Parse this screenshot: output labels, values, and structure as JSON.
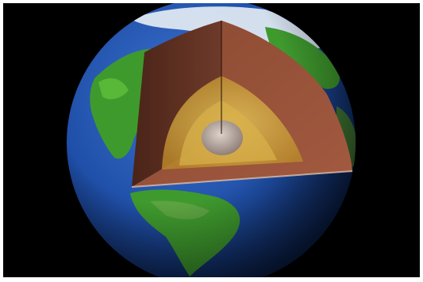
{
  "image": {
    "subject": "earth-cutaway",
    "colors": {
      "background": "#000000",
      "ocean": "#1f4fa8",
      "land": "#3f9a2e",
      "ice": "#e8eef5",
      "crust": "#6e3a2a",
      "mantle": "#8b4a32",
      "outer_core": "#c79a2e",
      "inner_core": "#b8a8a0"
    }
  }
}
